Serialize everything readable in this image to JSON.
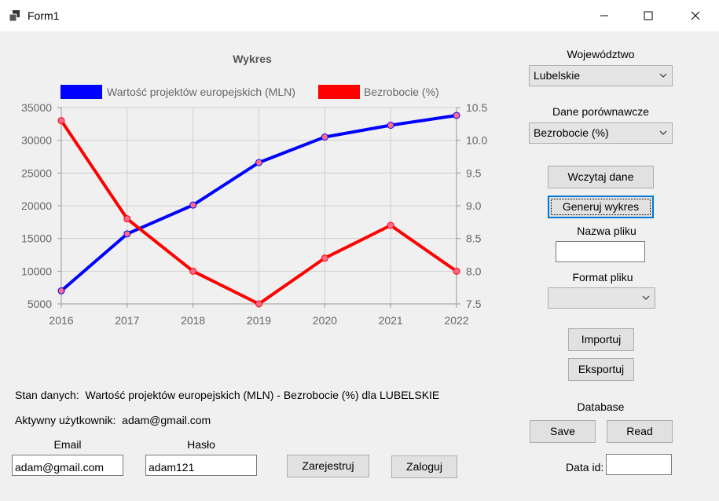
{
  "window": {
    "title": "Form1"
  },
  "chart_data": {
    "type": "line",
    "title": "Wykres",
    "x": [
      "2016",
      "2017",
      "2018",
      "2019",
      "2020",
      "2021",
      "2022"
    ],
    "series": [
      {
        "name": "Wartość projektów europejskich (MLN)",
        "color": "#0000ff",
        "axis": "left",
        "values": [
          7000,
          15700,
          20100,
          26600,
          30500,
          32300,
          33800
        ]
      },
      {
        "name": "Bezrobocie (%)",
        "color": "#ff0000",
        "axis": "right",
        "values": [
          10.3,
          8.8,
          8.0,
          7.5,
          8.2,
          8.7,
          8.0
        ]
      }
    ],
    "y_left": {
      "min": 5000,
      "max": 35000,
      "ticks": [
        "35000",
        "30000",
        "25000",
        "20000",
        "15000",
        "10000",
        "5000"
      ]
    },
    "y_right": {
      "min": 7.5,
      "max": 10.5,
      "ticks": [
        "10.5",
        "10.0",
        "9.5",
        "9.0",
        "8.5",
        "8.0",
        "7.5"
      ]
    },
    "legend_position": "top",
    "grid": true,
    "marker_color": "#ff6b8a"
  },
  "status": {
    "label": "Stan danych:",
    "value": "Wartość projektów europejskich (MLN) - Bezrobocie (%) dla LUBELSKIE"
  },
  "user": {
    "label": "Aktywny użytkownik:",
    "value": "adam@gmail.com"
  },
  "login": {
    "email_label": "Email",
    "email_value": "adam@gmail.com",
    "password_label": "Hasło",
    "password_value": "adam121",
    "register_label": "Zarejestruj",
    "login_label": "Zaloguj"
  },
  "panel": {
    "voivodeship_label": "Województwo",
    "voivodeship_value": "Lubelskie",
    "compare_label": "Dane porównawcze",
    "compare_value": "Bezrobocie (%)",
    "load_label": "Wczytaj dane",
    "generate_label": "Generuj wykres",
    "filename_label": "Nazwa pliku",
    "filename_value": "",
    "format_label": "Format pliku",
    "format_value": "",
    "import_label": "Importuj",
    "export_label": "Eksportuj",
    "database_label": "Database",
    "save_label": "Save",
    "read_label": "Read",
    "dataid_label": "Data id:",
    "dataid_value": ""
  }
}
